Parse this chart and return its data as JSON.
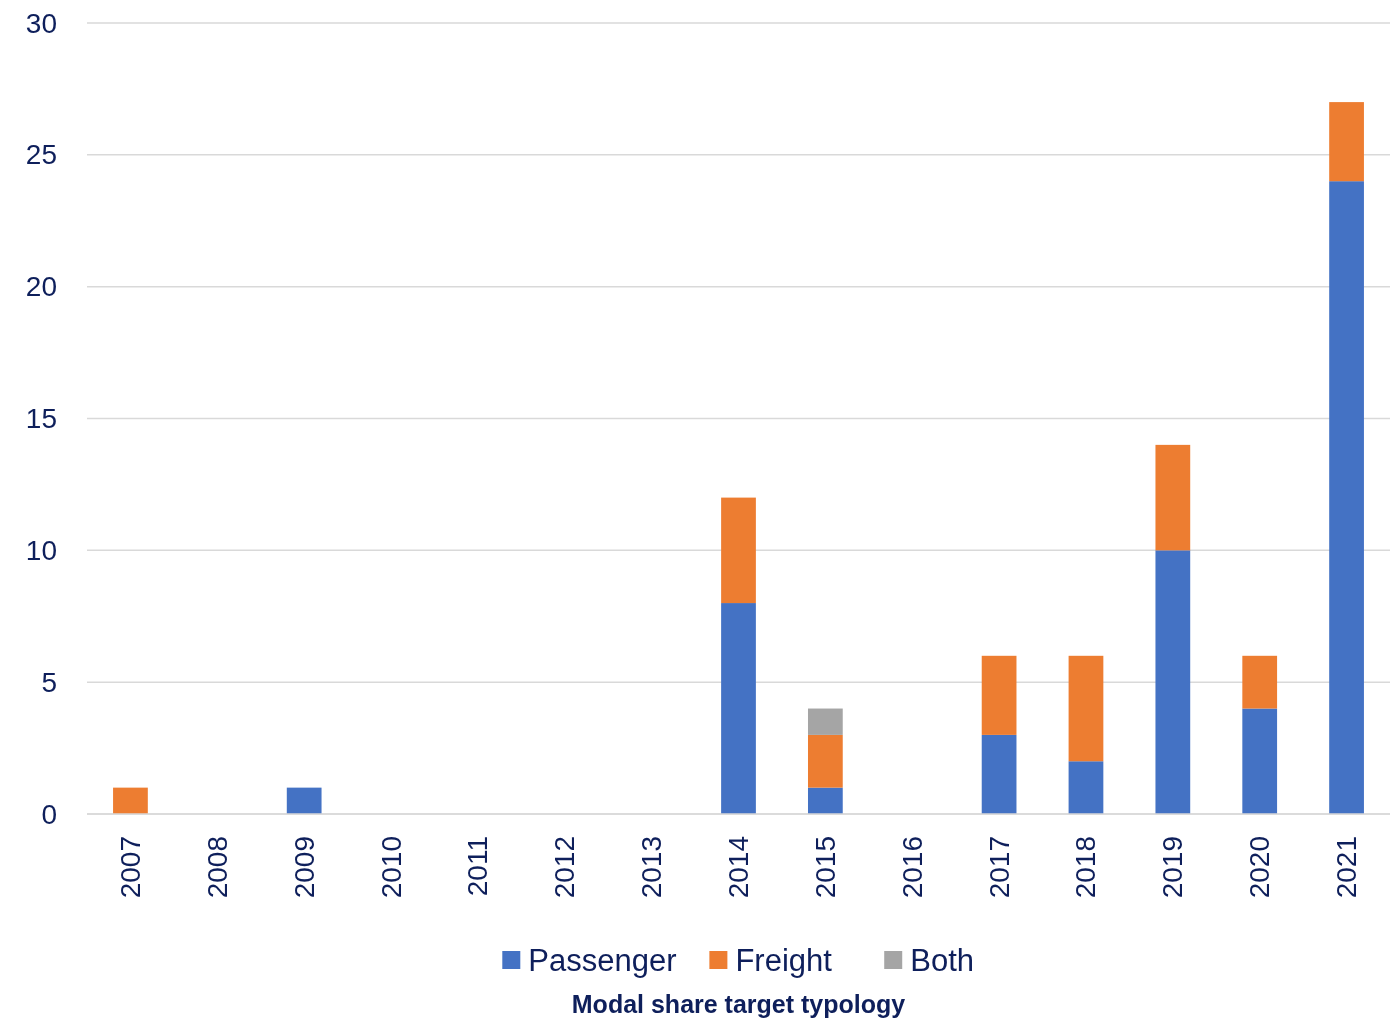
{
  "chart_data": {
    "type": "bar",
    "stacked": true,
    "legend_title": "Modal share target typology",
    "categories": [
      "2007",
      "2008",
      "2009",
      "2010",
      "2011",
      "2012",
      "2013",
      "2014",
      "2015",
      "2016",
      "2017",
      "2018",
      "2019",
      "2020",
      "2021"
    ],
    "series": [
      {
        "name": "Passenger",
        "color": "#4472c4",
        "values": [
          null,
          null,
          1,
          null,
          null,
          null,
          null,
          8,
          1,
          null,
          3,
          2,
          10,
          4,
          24
        ]
      },
      {
        "name": "Freight",
        "color": "#ed7d31",
        "values": [
          1,
          null,
          null,
          null,
          null,
          null,
          null,
          4,
          2,
          null,
          3,
          4,
          4,
          2,
          3
        ]
      },
      {
        "name": "Both",
        "color": "#a5a5a5",
        "values": [
          null,
          null,
          null,
          null,
          null,
          null,
          null,
          null,
          1,
          null,
          null,
          null,
          null,
          null,
          null
        ]
      }
    ],
    "ylim": [
      0,
      30
    ],
    "yticks": [
      0,
      5,
      10,
      15,
      20,
      25,
      30
    ],
    "grid": "y",
    "legend": "bottom"
  }
}
